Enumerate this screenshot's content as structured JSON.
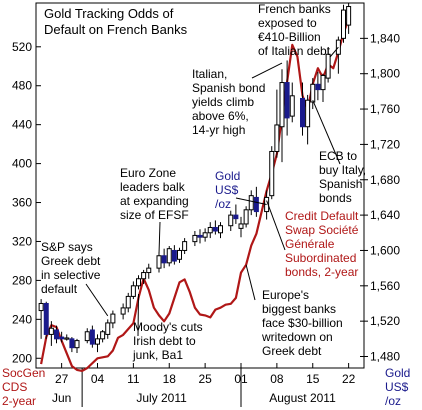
{
  "chart_data": {
    "type": "candlestick+line",
    "title_lines": [
      "Gold Tracking Odds of",
      "Default on French Banks"
    ],
    "left_axis": {
      "ticks": [
        200,
        240,
        280,
        320,
        360,
        400,
        440,
        480,
        520
      ],
      "ylim": [
        190,
        565
      ],
      "label_lines": [
        "SocGen",
        "CDS",
        "2-year"
      ]
    },
    "right_axis": {
      "ticks": [
        "1,480",
        "1,520",
        "1,560",
        "1,600",
        "1,640",
        "1,680",
        "1,720",
        "1,760",
        "1,800",
        "1,840"
      ],
      "tick_values": [
        1480,
        1520,
        1560,
        1600,
        1640,
        1680,
        1720,
        1760,
        1800,
        1840
      ],
      "ylim": [
        1467,
        1880
      ],
      "label_lines": [
        "Gold",
        "US$",
        "/oz"
      ]
    },
    "x_ticks": [
      "27",
      "04",
      "11",
      "18",
      "25",
      "01",
      "08",
      "15",
      "22"
    ],
    "x_tick_days": [
      0,
      7,
      14,
      21,
      28,
      35,
      42,
      49,
      56
    ],
    "x_months": [
      {
        "label": "Jun",
        "start": -4,
        "end": 4
      },
      {
        "label": "July 2011",
        "start": 4,
        "end": 35
      },
      {
        "label": "August 2011",
        "start": 35,
        "end": 59
      }
    ],
    "gold_series_label_lines": [
      "Gold",
      "US$",
      "/oz"
    ],
    "gold_candles": [
      {
        "d": -4,
        "o": 1532,
        "h": 1545,
        "l": 1500,
        "c": 1540
      },
      {
        "d": -3,
        "o": 1540,
        "h": 1542,
        "l": 1500,
        "c": 1505
      },
      {
        "d": -2,
        "o": 1505,
        "h": 1520,
        "l": 1492,
        "c": 1512
      },
      {
        "d": -1,
        "o": 1510,
        "h": 1515,
        "l": 1495,
        "c": 1500
      },
      {
        "d": 0,
        "o": 1502,
        "h": 1508,
        "l": 1496,
        "c": 1500
      },
      {
        "d": 1,
        "o": 1500,
        "h": 1505,
        "l": 1498,
        "c": 1501
      },
      {
        "d": 2,
        "o": 1500,
        "h": 1502,
        "l": 1485,
        "c": 1490
      },
      {
        "d": 3,
        "o": 1490,
        "h": 1500,
        "l": 1484,
        "c": 1498
      },
      {
        "d": 5,
        "o": 1498,
        "h": 1512,
        "l": 1495,
        "c": 1508
      },
      {
        "d": 6,
        "o": 1510,
        "h": 1515,
        "l": 1490,
        "c": 1494
      },
      {
        "d": 7,
        "o": 1494,
        "h": 1505,
        "l": 1485,
        "c": 1500
      },
      {
        "d": 8,
        "o": 1500,
        "h": 1510,
        "l": 1496,
        "c": 1508
      },
      {
        "d": 9,
        "o": 1505,
        "h": 1522,
        "l": 1500,
        "c": 1518
      },
      {
        "d": 10,
        "o": 1518,
        "h": 1532,
        "l": 1512,
        "c": 1528
      },
      {
        "d": 12,
        "o": 1528,
        "h": 1540,
        "l": 1522,
        "c": 1535
      },
      {
        "d": 13,
        "o": 1535,
        "h": 1552,
        "l": 1530,
        "c": 1548
      },
      {
        "d": 14,
        "o": 1548,
        "h": 1565,
        "l": 1545,
        "c": 1560
      },
      {
        "d": 15,
        "o": 1560,
        "h": 1572,
        "l": 1556,
        "c": 1568
      },
      {
        "d": 16,
        "o": 1568,
        "h": 1578,
        "l": 1562,
        "c": 1575
      },
      {
        "d": 17,
        "o": 1575,
        "h": 1585,
        "l": 1568,
        "c": 1580
      },
      {
        "d": 19,
        "o": 1580,
        "h": 1598,
        "l": 1575,
        "c": 1594
      },
      {
        "d": 20,
        "o": 1594,
        "h": 1602,
        "l": 1580,
        "c": 1586
      },
      {
        "d": 21,
        "o": 1586,
        "h": 1605,
        "l": 1582,
        "c": 1602
      },
      {
        "d": 22,
        "o": 1600,
        "h": 1606,
        "l": 1584,
        "c": 1588
      },
      {
        "d": 23,
        "o": 1590,
        "h": 1603,
        "l": 1586,
        "c": 1600
      },
      {
        "d": 24,
        "o": 1600,
        "h": 1614,
        "l": 1596,
        "c": 1610
      },
      {
        "d": 26,
        "o": 1610,
        "h": 1622,
        "l": 1605,
        "c": 1617
      },
      {
        "d": 27,
        "o": 1617,
        "h": 1624,
        "l": 1608,
        "c": 1615
      },
      {
        "d": 28,
        "o": 1615,
        "h": 1625,
        "l": 1610,
        "c": 1620
      },
      {
        "d": 29,
        "o": 1620,
        "h": 1632,
        "l": 1614,
        "c": 1626
      },
      {
        "d": 30,
        "o": 1626,
        "h": 1634,
        "l": 1618,
        "c": 1622
      },
      {
        "d": 31,
        "o": 1620,
        "h": 1632,
        "l": 1614,
        "c": 1628
      },
      {
        "d": 33,
        "o": 1628,
        "h": 1645,
        "l": 1622,
        "c": 1640
      },
      {
        "d": 34,
        "o": 1640,
        "h": 1652,
        "l": 1630,
        "c": 1636
      },
      {
        "d": 35,
        "o": 1625,
        "h": 1638,
        "l": 1615,
        "c": 1630
      },
      {
        "d": 36,
        "o": 1630,
        "h": 1650,
        "l": 1626,
        "c": 1646
      },
      {
        "d": 37,
        "o": 1646,
        "h": 1668,
        "l": 1640,
        "c": 1662
      },
      {
        "d": 38,
        "o": 1660,
        "h": 1672,
        "l": 1638,
        "c": 1644
      },
      {
        "d": 40,
        "o": 1644,
        "h": 1668,
        "l": 1635,
        "c": 1660
      },
      {
        "d": 41,
        "o": 1662,
        "h": 1718,
        "l": 1658,
        "c": 1712
      },
      {
        "d": 42,
        "o": 1712,
        "h": 1782,
        "l": 1705,
        "c": 1742
      },
      {
        "d": 43,
        "o": 1740,
        "h": 1805,
        "l": 1700,
        "c": 1790
      },
      {
        "d": 44,
        "o": 1790,
        "h": 1815,
        "l": 1730,
        "c": 1750
      },
      {
        "d": 45,
        "o": 1752,
        "h": 1790,
        "l": 1745,
        "c": 1775
      },
      {
        "d": 47,
        "o": 1772,
        "h": 1790,
        "l": 1730,
        "c": 1740
      },
      {
        "d": 48,
        "o": 1740,
        "h": 1776,
        "l": 1720,
        "c": 1770
      },
      {
        "d": 49,
        "o": 1768,
        "h": 1795,
        "l": 1760,
        "c": 1788
      },
      {
        "d": 50,
        "o": 1788,
        "h": 1802,
        "l": 1770,
        "c": 1782
      },
      {
        "d": 51,
        "o": 1782,
        "h": 1800,
        "l": 1768,
        "c": 1798
      },
      {
        "d": 52,
        "o": 1795,
        "h": 1830,
        "l": 1790,
        "c": 1822
      },
      {
        "d": 54,
        "o": 1822,
        "h": 1842,
        "l": 1800,
        "c": 1838
      },
      {
        "d": 55,
        "o": 1840,
        "h": 1878,
        "l": 1835,
        "c": 1872
      },
      {
        "d": 56,
        "o": 1855,
        "h": 1880,
        "l": 1845,
        "c": 1876
      }
    ],
    "cds_series": {
      "label_lines": [
        "Credit Default",
        "Swap Société",
        "Générale",
        "Subordinated",
        "bonds, 2-year"
      ],
      "color": "#b01717",
      "points": [
        [
          -4,
          194
        ],
        [
          -3,
          222
        ],
        [
          -2,
          234
        ],
        [
          -1,
          232
        ],
        [
          0,
          218
        ],
        [
          2,
          192
        ],
        [
          3,
          188
        ],
        [
          4,
          187
        ],
        [
          5,
          190
        ],
        [
          7,
          200
        ],
        [
          9,
          202
        ],
        [
          10,
          208
        ],
        [
          11,
          221
        ],
        [
          12,
          224
        ],
        [
          14,
          236
        ],
        [
          15,
          262
        ],
        [
          16,
          282
        ],
        [
          17,
          270
        ],
        [
          18,
          252
        ],
        [
          19,
          244
        ],
        [
          20,
          238
        ],
        [
          21,
          246
        ],
        [
          22,
          262
        ],
        [
          23,
          278
        ],
        [
          24,
          281
        ],
        [
          25,
          268
        ],
        [
          26,
          252
        ],
        [
          27,
          245
        ],
        [
          28,
          244
        ],
        [
          29,
          242
        ],
        [
          30,
          250
        ],
        [
          31,
          252
        ],
        [
          32,
          255
        ],
        [
          33,
          256
        ],
        [
          34,
          262
        ],
        [
          35,
          288
        ],
        [
          36,
          296
        ],
        [
          37,
          316
        ],
        [
          38,
          328
        ],
        [
          39,
          350
        ],
        [
          40,
          372
        ],
        [
          41,
          390
        ],
        [
          42,
          410
        ],
        [
          43,
          448
        ],
        [
          44,
          484
        ],
        [
          45,
          522
        ],
        [
          46,
          510
        ],
        [
          47,
          470
        ],
        [
          48,
          455
        ],
        [
          49,
          482
        ],
        [
          50,
          498
        ],
        [
          51,
          488
        ],
        [
          52,
          502
        ],
        [
          53,
          498
        ],
        [
          54,
          515
        ],
        [
          55,
          534
        ],
        [
          56,
          548
        ]
      ]
    },
    "annotations": [
      {
        "id": "french-banks",
        "lines": [
          "French banks",
          "exposed to",
          "€410-Billion",
          "of Italian debt"
        ]
      },
      {
        "id": "italian-yields",
        "lines": [
          "Italian,",
          "Spanish bond",
          "yields climb",
          "above 6%,",
          "14-yr high"
        ]
      },
      {
        "id": "euro-zone",
        "lines": [
          "Euro Zone",
          "leaders balk",
          "at expanding",
          "size of EFSF"
        ]
      },
      {
        "id": "ecb",
        "lines": [
          "ECB to",
          "buy Italy,",
          "Spanish",
          "bonds"
        ]
      },
      {
        "id": "sp-greek",
        "lines": [
          "S&P says",
          "Greek debt",
          "in selective",
          "default"
        ]
      },
      {
        "id": "moodys",
        "lines": [
          "Moody's cuts",
          "Irish debt to",
          "junk, Ba1"
        ]
      },
      {
        "id": "europe-banks",
        "lines": [
          "Europe's",
          "biggest banks",
          "face $30-billion",
          "writedown on",
          "Greek debt"
        ]
      }
    ],
    "grid": false,
    "colors": {
      "candle_fill": "#ffffff",
      "candle_stroke": "#000000",
      "gold_label": "#1a1a8c",
      "cds": "#b01717",
      "axis_left": "#000000"
    }
  }
}
